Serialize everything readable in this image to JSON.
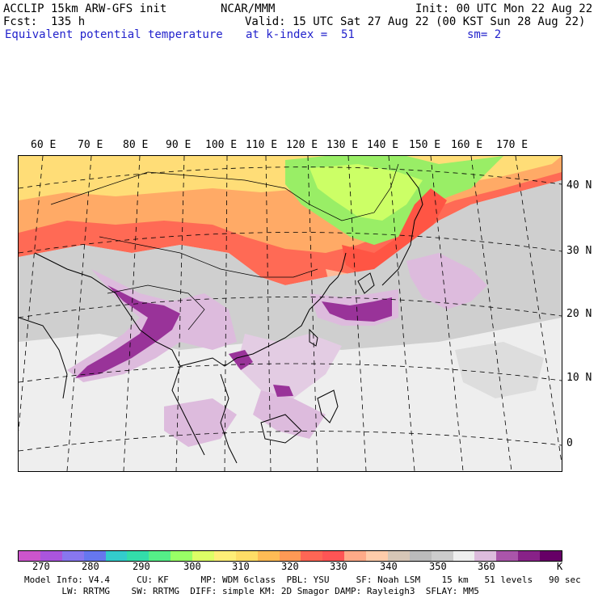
{
  "header": {
    "line1_left": "ACCLIP 15km ARW-GFS init",
    "line1_mid": "NCAR/MMM",
    "line1_right": "Init: 00 UTC Mon 22 Aug 22",
    "line2_left": "Fcst:  135 h",
    "line2_right": "Valid: 15 UTC Sat 27 Aug 22 (00 KST Sun 28 Aug 22)",
    "line3_left": "Equivalent potential temperature",
    "line3_mid": "at k-index =  51",
    "line3_right": "sm= 2"
  },
  "map": {
    "lon_labels": [
      "60 E",
      "70 E",
      "80 E",
      "90 E",
      "100 E",
      "110 E",
      "120 E",
      "130 E",
      "140 E",
      "150 E",
      "160 E",
      "170 E"
    ],
    "lat_labels": [
      "40 N",
      "30 N",
      "20 N",
      "10 N",
      "0"
    ]
  },
  "colorbar": {
    "colors": [
      "#cc55cc",
      "#aa55dd",
      "#8877ee",
      "#6677ee",
      "#33cccc",
      "#33ddaa",
      "#55ee88",
      "#99ff66",
      "#ddff66",
      "#ffee77",
      "#ffdd66",
      "#ffbb55",
      "#ff9955",
      "#ff6655",
      "#ff5555",
      "#ffaa88",
      "#ffccaa",
      "#d6c6b6",
      "#bbbbbb",
      "#cccccc",
      "#eeeeee",
      "#ddbbdd",
      "#aa55aa",
      "#882288",
      "#660066"
    ],
    "ticks": [
      "270",
      "280",
      "290",
      "300",
      "310",
      "320",
      "330",
      "340",
      "350",
      "360"
    ],
    "unit": "K"
  },
  "footer": {
    "line1": "Model Info: V4.4     CU: KF      MP: WDM 6class  PBL: YSU     SF: Noah LSM    15 km   51 levels   90 sec",
    "line2": "       LW: RRTMG    SW: RRTMG  DIFF: simple KM: 2D Smagor DAMP: Rayleigh3  SFLAY: MM5"
  }
}
